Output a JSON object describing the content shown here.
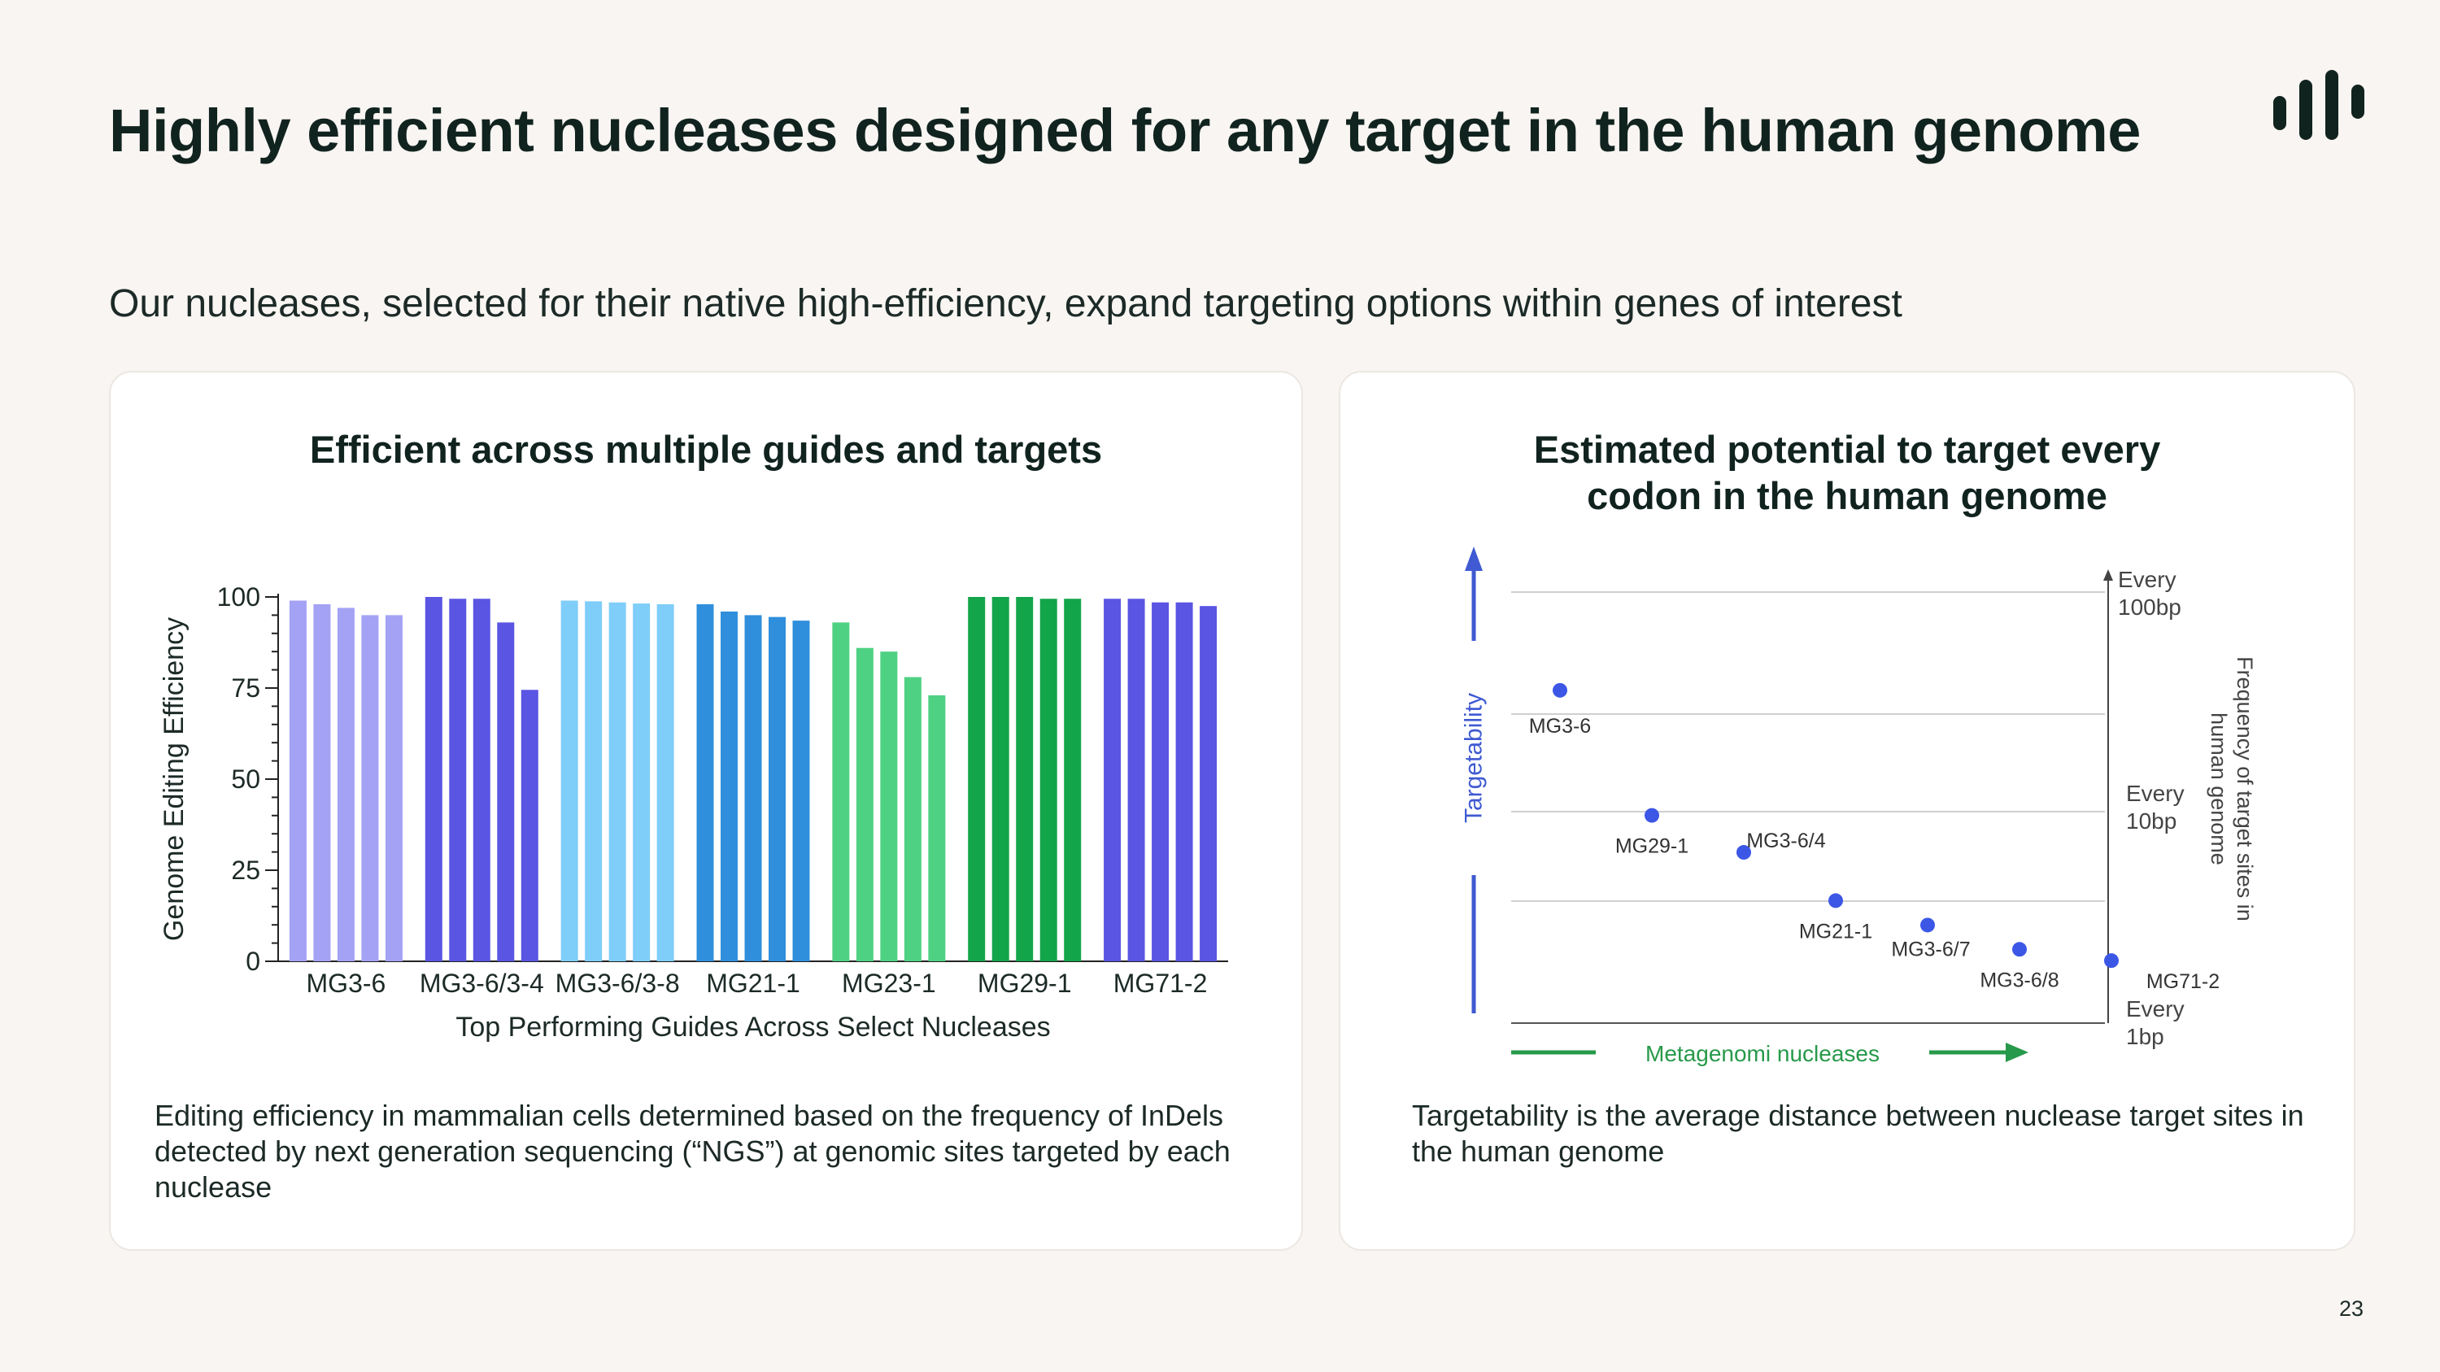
{
  "slide": {
    "title": "Highly efficient nucleases designed for any target in the human genome",
    "subtitle": "Our nucleases, selected for their native high-efficiency, expand targeting options within genes of interest",
    "page_number": "23",
    "logo_icon": "bar-logo-icon"
  },
  "left_panel": {
    "title": "Efficient across multiple guides and targets",
    "description": "Editing efficiency in mammalian cells determined based on the frequency of InDels detected by next generation sequencing (“NGS”) at genomic sites targeted by each nuclease"
  },
  "right_panel": {
    "title_line1": "Estimated potential to target every",
    "title_line2": "codon in the human genome",
    "description": "Targetability is the average distance between nuclease target sites in the human genome"
  },
  "colors": {
    "background": "#f8f5f2",
    "point": "#3c57e6",
    "targetability_arrow": "#3f5ad2",
    "nucleases_arrow": "#27994a"
  },
  "chart_data": [
    {
      "type": "bar",
      "ylabel": "Genome Editing Efficiency",
      "xlabel": "Top Performing Guides Across Select Nucleases",
      "ylim": [
        0,
        100
      ],
      "yticks": [
        0,
        25,
        50,
        75,
        100
      ],
      "grid": false,
      "groups": [
        {
          "name": "MG3-6",
          "color": "#a3a2f5",
          "values": [
            99,
            98,
            97,
            95,
            95
          ]
        },
        {
          "name": "MG3-6/3-4",
          "color": "#5a55e2",
          "values": [
            100,
            99.5,
            99.5,
            93,
            74.5
          ]
        },
        {
          "name": "MG3-6/3-8",
          "color": "#7fcdf9",
          "values": [
            99,
            98.8,
            98.5,
            98.2,
            98
          ]
        },
        {
          "name": "MG21-1",
          "color": "#2f8fdc",
          "values": [
            98,
            96,
            95,
            94.5,
            93.5
          ]
        },
        {
          "name": "MG23-1",
          "color": "#4fd184",
          "values": [
            93,
            86,
            85,
            78,
            73
          ]
        },
        {
          "name": "MG29-1",
          "color": "#13a54a",
          "values": [
            100,
            100,
            100,
            99.5,
            99.5
          ]
        },
        {
          "name": "MG71-2",
          "color": "#5a55e2",
          "values": [
            99.5,
            99.5,
            98.5,
            98.5,
            97.5
          ]
        }
      ]
    },
    {
      "type": "scatter",
      "ylabel": "Targetability",
      "xlabel": "Metagenomi nucleases",
      "y2label_line1": "Frequency of target sites in",
      "y2label_line2": "human genome",
      "scale_labels": [
        {
          "line1": "Every",
          "line2": "1bp",
          "value": 1
        },
        {
          "line1": "Every",
          "line2": "10bp",
          "value": 10
        },
        {
          "line1": "Every",
          "line2": "100bp",
          "value": 100
        }
      ],
      "yscale": "log",
      "ylim": [
        100,
        1
      ],
      "points": [
        {
          "label": "MG3-6",
          "x": 1,
          "y": 35
        },
        {
          "label": "MG29-1",
          "x": 2,
          "y": 9.2
        },
        {
          "label": "MG3-6/4",
          "x": 3,
          "y": 6.2
        },
        {
          "label": "MG21-1",
          "x": 4,
          "y": 3.7
        },
        {
          "label": "MG3-6/7",
          "x": 5,
          "y": 2.85
        },
        {
          "label": "MG3-6/8",
          "x": 6,
          "y": 2.2
        },
        {
          "label": "MG71-2",
          "x": 7,
          "y": 1.95
        }
      ]
    }
  ]
}
